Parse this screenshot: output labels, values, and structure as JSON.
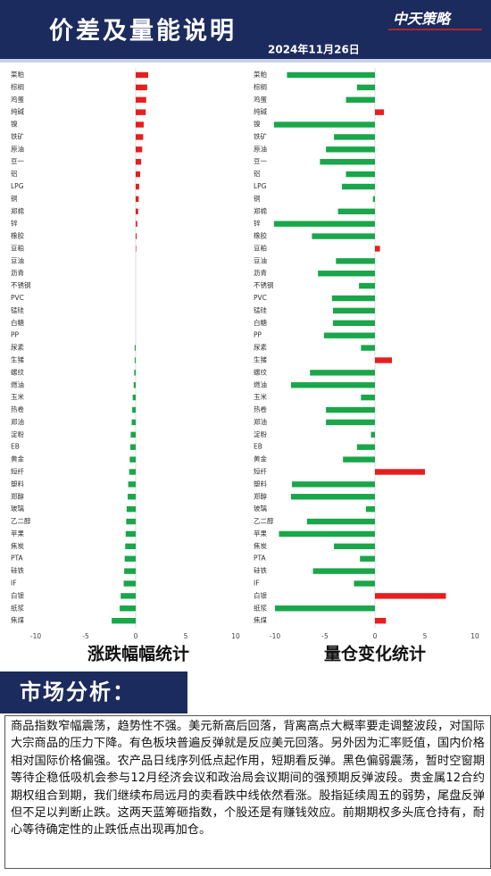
{
  "header": {
    "title": "价差及量能说明",
    "date": "2024年11月26日",
    "logo": "中天策略"
  },
  "chart_data": [
    {
      "type": "bar",
      "orientation": "horizontal",
      "title": "涨跌幅幅统计",
      "categories": [
        "菜粕",
        "棕榈",
        "鸡蛋",
        "纯碱",
        "镍",
        "铁矿",
        "原油",
        "豆一",
        "铝",
        "LPG",
        "铜",
        "郑棉",
        "锌",
        "橡胶",
        "豆粕",
        "豆油",
        "沥青",
        "不锈钢",
        "PVC",
        "锰硅",
        "白糖",
        "PP",
        "尿素",
        "生猪",
        "螺纹",
        "燃油",
        "玉米",
        "热卷",
        "郑油",
        "淀粉",
        "EB",
        "黄金",
        "短纤",
        "塑料",
        "郑醇",
        "玻璃",
        "乙二醇",
        "苹果",
        "焦炭",
        "PTA",
        "硅铁",
        "IF",
        "白银",
        "纸浆",
        "焦煤"
      ],
      "values": [
        1.25,
        1.15,
        1.05,
        1.0,
        0.8,
        0.75,
        0.65,
        0.55,
        0.45,
        0.35,
        0.3,
        0.25,
        0.15,
        0.1,
        0.05,
        0,
        0,
        0,
        0,
        0,
        0,
        0,
        -0.1,
        -0.1,
        -0.15,
        -0.2,
        -0.3,
        -0.35,
        -0.4,
        -0.5,
        -0.55,
        -0.6,
        -0.65,
        -0.75,
        -0.8,
        -0.9,
        -0.95,
        -1.0,
        -1.05,
        -1.1,
        -1.15,
        -1.2,
        -1.5,
        -1.6,
        -2.4
      ],
      "positive_color": "#e61e1e",
      "negative_color": "#1aa64a",
      "xlim": [
        -10,
        10
      ],
      "xticks": [
        -10,
        -5,
        0,
        5,
        10
      ]
    },
    {
      "type": "bar",
      "orientation": "horizontal",
      "title": "量仓变化统计",
      "categories": [
        "菜粕",
        "棕榈",
        "鸡蛋",
        "纯碱",
        "镍",
        "铁矿",
        "原油",
        "豆一",
        "铝",
        "LPG",
        "铜",
        "郑棉",
        "锌",
        "橡胶",
        "豆粕",
        "豆油",
        "沥青",
        "不锈钢",
        "PVC",
        "锰硅",
        "白糖",
        "PP",
        "尿素",
        "生猪",
        "螺纹",
        "燃油",
        "玉米",
        "热卷",
        "郑油",
        "淀粉",
        "EB",
        "黄金",
        "短纤",
        "塑料",
        "郑醇",
        "玻璃",
        "乙二醇",
        "苹果",
        "焦炭",
        "PTA",
        "硅铁",
        "IF",
        "白银",
        "纸浆",
        "焦煤"
      ],
      "values": [
        -8.8,
        -1.8,
        -2.9,
        0.9,
        -10.1,
        -4.1,
        -4.9,
        -5.5,
        -2.9,
        -3.3,
        -0.2,
        -3.7,
        -10.1,
        -6.3,
        0.5,
        -3.9,
        -5.7,
        -1.6,
        -4.3,
        -4.2,
        -4.2,
        -5.1,
        -1.4,
        1.7,
        -6.5,
        -8.4,
        -1.4,
        -4.9,
        -4.9,
        -0.4,
        -1.8,
        -3.2,
        5.0,
        -8.3,
        -8.4,
        -0.9,
        -6.8,
        -9.6,
        -4.1,
        -1.5,
        -6.2,
        -2.1,
        7.1,
        -10.0,
        1.1
      ],
      "positive_color": "#e61e1e",
      "negative_color": "#1aa64a",
      "xlim": [
        -10,
        10
      ],
      "xticks": [
        -10,
        -5,
        0,
        5,
        10
      ]
    }
  ],
  "analysis": {
    "heading": "市场分析：",
    "text": "商品指数窄幅震荡，趋势性不强。美元新高后回落，背离高点大概率要走调整波段，对国际大宗商品的压力下降。有色板块普遍反弹就是反应美元回落。另外因为汇率贬值，国内价格相对国际价格偏强。农产品日线序列低点起作用，短期看反弹。黑色偏弱震荡，暂时空窗期等待企稳低吸机会参与12月经济会议和政治局会议期间的强预期反弹波段。贵金属12合约期权组合到期，我们继续布局远月的卖看跌中线依然看涨。股指延续周五的弱势，尾盘反弹但不足以判断止跌。这两天蓝筹砸指数，个股还是有赚钱效应。前期期权多头底仓持有，耐心等待确定性的止跌低点出现再加仓。"
  }
}
